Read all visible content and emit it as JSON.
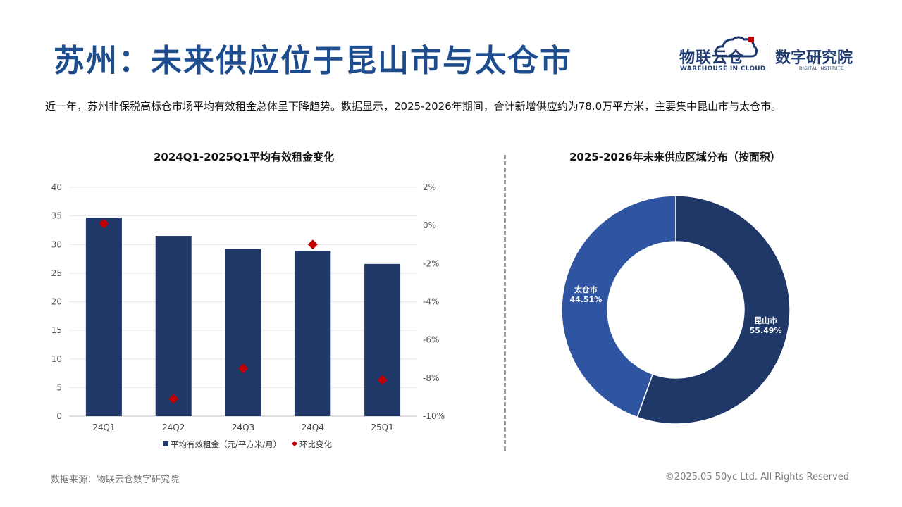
{
  "header": {
    "title": "苏州：未来供应位于昆山市与太仓市",
    "description": "近一年，苏州非保税高标仓市场平均有效租金总体呈下降趋势。数据显示，2025-2026年期间，合计新增供应约为78.0万平方米，主要集中昆山市与太仓市。"
  },
  "logo": {
    "brand1": "物联云仓",
    "brand1_sub": "WAREHOUSE IN CLOUD",
    "brand2": "数字研究院",
    "brand2_sub": "DIGITAL INSTITUTE"
  },
  "colors": {
    "title": "#1e4d8f",
    "bar": "#1f3868",
    "diamond": "#c00000",
    "donut_dark": "#1f3868",
    "donut_light": "#2e54a2"
  },
  "chart_data": [
    {
      "type": "bar",
      "title": "2024Q1-2025Q1平均有效租金变化",
      "categories": [
        "24Q1",
        "24Q2",
        "24Q3",
        "24Q4",
        "25Q1"
      ],
      "series": [
        {
          "name": "平均有效租金（元/平方米/月）",
          "type": "bar",
          "axis": "left",
          "values": [
            34.7,
            31.5,
            29.2,
            28.9,
            26.6
          ]
        },
        {
          "name": "环比变化",
          "type": "scatter",
          "marker": "diamond",
          "axis": "right",
          "values": [
            0.1,
            -9.1,
            -7.5,
            -1.0,
            -8.1
          ]
        }
      ],
      "y_left": {
        "min": 0,
        "max": 40,
        "ticks": [
          "0",
          "5",
          "10",
          "15",
          "20",
          "25",
          "30",
          "35",
          "40"
        ]
      },
      "y_right": {
        "min": -10,
        "max": 2,
        "ticks": [
          "-10%",
          "-8%",
          "-6%",
          "-4%",
          "-2%",
          "0%",
          "2%"
        ]
      },
      "grid": true,
      "legend_position": "bottom"
    },
    {
      "type": "pie",
      "donut": true,
      "title": "2025-2026年未来供应区域分布（按面积）",
      "slices": [
        {
          "label": "昆山市",
          "value": 55.49,
          "display": "55.49%"
        },
        {
          "label": "太仓市",
          "value": 44.51,
          "display": "44.51%"
        }
      ]
    }
  ],
  "footer": {
    "source": "数据来源：物联云仓数字研究院",
    "copyright": "©2025.05 50yc Ltd. All Rights Reserved"
  }
}
